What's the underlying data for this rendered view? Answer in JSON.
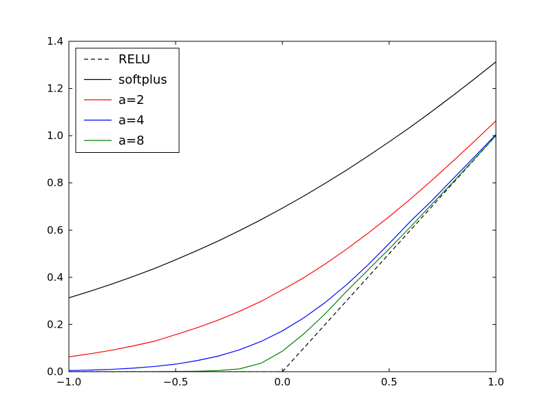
{
  "chart_data": {
    "type": "line",
    "title": "",
    "xlabel": "",
    "ylabel": "",
    "xlim": [
      -1.0,
      1.0
    ],
    "ylim": [
      0.0,
      1.4
    ],
    "grid": false,
    "legend_position": "top-left",
    "x_ticks": [
      -1.0,
      -0.5,
      0.0,
      0.5,
      1.0
    ],
    "x_tick_labels": [
      "−1.0",
      "−0.5",
      "0.0",
      "0.5",
      "1.0"
    ],
    "y_ticks": [
      0.0,
      0.2,
      0.4,
      0.6,
      0.8,
      1.0,
      1.2,
      1.4
    ],
    "y_tick_labels": [
      "0.0",
      "0.2",
      "0.4",
      "0.6",
      "0.8",
      "1.0",
      "1.2",
      "1.4"
    ],
    "x": [
      -1.0,
      -0.9,
      -0.8,
      -0.7,
      -0.6,
      -0.5,
      -0.4,
      -0.3,
      -0.2,
      -0.1,
      0.0,
      0.1,
      0.2,
      0.3,
      0.4,
      0.5,
      0.6,
      0.7,
      0.8,
      0.9,
      1.0
    ],
    "series": [
      {
        "name": "RELU",
        "color": "#000000",
        "dashed": true,
        "values": [
          0.0,
          0.0,
          0.0,
          0.0,
          0.0,
          0.0,
          0.0,
          0.0,
          0.0,
          0.0,
          0.0,
          0.1,
          0.2,
          0.3,
          0.4,
          0.5,
          0.6,
          0.7,
          0.8,
          0.9,
          1.0
        ]
      },
      {
        "name": "softplus",
        "color": "#000000",
        "dashed": false,
        "values": [
          0.313,
          0.341,
          0.371,
          0.403,
          0.437,
          0.474,
          0.513,
          0.554,
          0.598,
          0.644,
          0.693,
          0.744,
          0.798,
          0.854,
          0.913,
          0.974,
          1.037,
          1.103,
          1.171,
          1.241,
          1.313
        ]
      },
      {
        "name": "a=2",
        "color": "#ff0000",
        "dashed": false,
        "values": [
          0.063,
          0.076,
          0.091,
          0.109,
          0.129,
          0.157,
          0.186,
          0.219,
          0.256,
          0.298,
          0.347,
          0.398,
          0.456,
          0.519,
          0.586,
          0.657,
          0.732,
          0.811,
          0.893,
          0.977,
          1.063
        ]
      },
      {
        "name": "a=4",
        "color": "#0000ff",
        "dashed": false,
        "values": [
          0.005,
          0.007,
          0.01,
          0.015,
          0.022,
          0.032,
          0.047,
          0.066,
          0.093,
          0.128,
          0.173,
          0.228,
          0.293,
          0.368,
          0.452,
          0.543,
          0.637,
          0.725,
          0.818,
          0.911,
          1.005
        ]
      },
      {
        "name": "a=8",
        "color": "#008000",
        "dashed": false,
        "values": [
          0.0,
          0.0,
          0.0,
          0.0,
          0.0,
          0.001,
          0.002,
          0.005,
          0.012,
          0.036,
          0.087,
          0.16,
          0.245,
          0.34,
          0.43,
          0.52,
          0.614,
          0.71,
          0.804,
          0.902,
          1.0
        ]
      }
    ]
  }
}
